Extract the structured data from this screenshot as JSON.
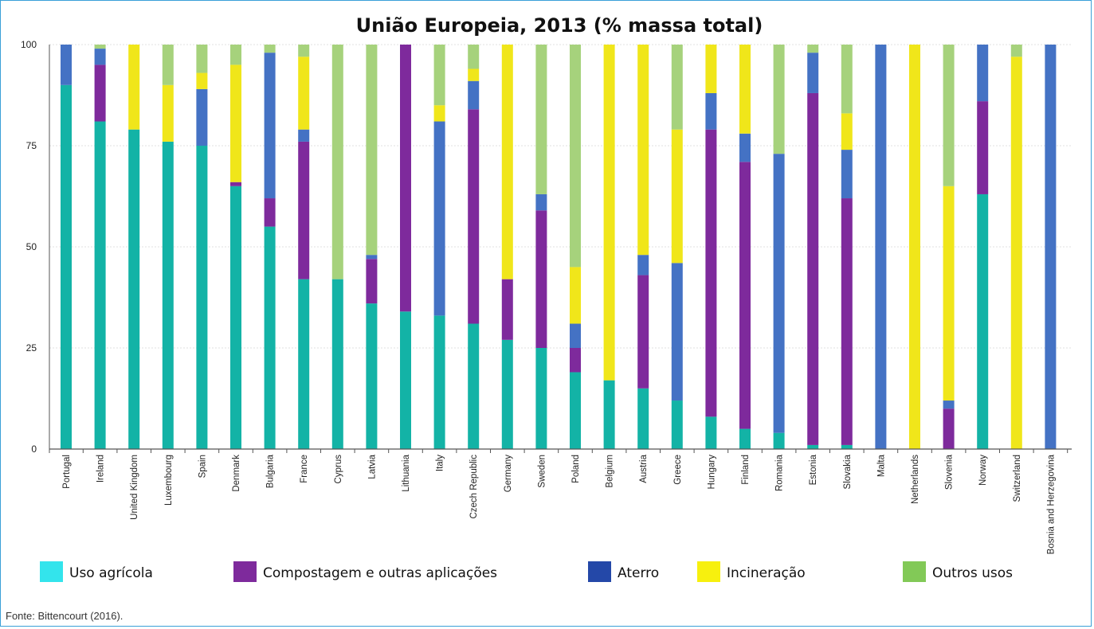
{
  "chart_data": {
    "type": "bar",
    "stacked": true,
    "title": "União Europeia, 2013 (% massa total)",
    "xlabel": "",
    "ylabel": "",
    "ylim": [
      0,
      100
    ],
    "yticks": [
      "0",
      "25",
      "50",
      "75",
      "100"
    ],
    "grid": true,
    "legend_position": "bottom",
    "categories": [
      "Portugal",
      "Ireland",
      "United Kingdom",
      "Luxembourg",
      "Spain",
      "Denmark",
      "Bulgaria",
      "France",
      "Cyprus",
      "Latvia",
      "Lithuania",
      "Italy",
      "Czech Republic",
      "Germany",
      "Sweden",
      "Poland",
      "Belgium",
      "Austria",
      "Greece",
      "Hungary",
      "Finland",
      "Romania",
      "Estonia",
      "Slovakia",
      "Malta",
      "Netherlands",
      "Slovenia",
      "Norway",
      "Switzerland",
      "Bosnia and Herzegovina"
    ],
    "category_labels": [
      "Portugal",
      "Ireland",
      "United Kingdom",
      "Luxembourg",
      "Spain",
      "Denmark",
      "Bulgaria",
      "France",
      "Cyprus",
      "Latvia",
      "Lithuania",
      "Italy",
      "Czech Republic",
      "Germany",
      "Sweden",
      "Poland",
      "Belgium",
      "Austria",
      "Greece",
      "Hungary",
      "Finland",
      "Romania",
      "Estonia",
      "Slovakia",
      "Malta",
      "Netherlands",
      "Slovenia",
      "Norway",
      "Switzerland",
      "Bosnia and Herzegovina"
    ],
    "series": [
      {
        "name": "Uso agrícola",
        "color": "#13b3a6",
        "values": [
          90,
          81,
          79,
          76,
          75,
          65,
          55,
          42,
          42,
          36,
          34,
          33,
          31,
          27,
          25,
          19,
          17,
          15,
          12,
          8,
          5,
          4,
          1,
          1,
          0,
          0,
          0,
          63,
          0,
          0
        ]
      },
      {
        "name": "Compostagem e outras aplicações",
        "color": "#7e2a9c",
        "values": [
          0,
          14,
          0,
          0,
          0,
          1,
          7,
          34,
          0,
          11,
          66,
          0,
          53,
          15,
          34,
          6,
          0,
          28,
          0,
          71,
          66,
          0,
          87,
          61,
          0,
          0,
          10,
          23,
          0,
          0
        ]
      },
      {
        "name": "Aterro",
        "color": "#4472c4",
        "values": [
          10,
          4,
          0,
          0,
          14,
          0,
          36,
          3,
          0,
          1,
          0,
          48,
          7,
          0,
          4,
          6,
          0,
          5,
          34,
          9,
          7,
          69,
          10,
          12,
          100,
          0,
          2,
          14,
          0,
          100
        ]
      },
      {
        "name": "Incineração",
        "color": "#f0e61a",
        "values": [
          0,
          0,
          21,
          14,
          4,
          29,
          0,
          18,
          0,
          0,
          0,
          4,
          3,
          58,
          0,
          14,
          83,
          52,
          33,
          12,
          22,
          0,
          0,
          9,
          0,
          100,
          53,
          0,
          97,
          0
        ]
      },
      {
        "name": "Outros usos",
        "color": "#a6d27c",
        "values": [
          0,
          1,
          0,
          10,
          7,
          5,
          2,
          3,
          58,
          52,
          0,
          15,
          6,
          0,
          37,
          55,
          0,
          0,
          21,
          0,
          0,
          27,
          2,
          17,
          0,
          0,
          35,
          0,
          3,
          0
        ]
      }
    ],
    "legend": [
      {
        "label": "Uso agrícola",
        "color": "#33e4ec"
      },
      {
        "label": "Compostagem e outras aplicações",
        "color": "#7e2a9c"
      },
      {
        "label": "Aterro",
        "color": "#2448a8"
      },
      {
        "label": "Incineração",
        "color": "#f7f00e"
      },
      {
        "label": "Outros usos",
        "color": "#82c957"
      }
    ]
  },
  "source_note": "Fonte: Bittencourt (2016)."
}
